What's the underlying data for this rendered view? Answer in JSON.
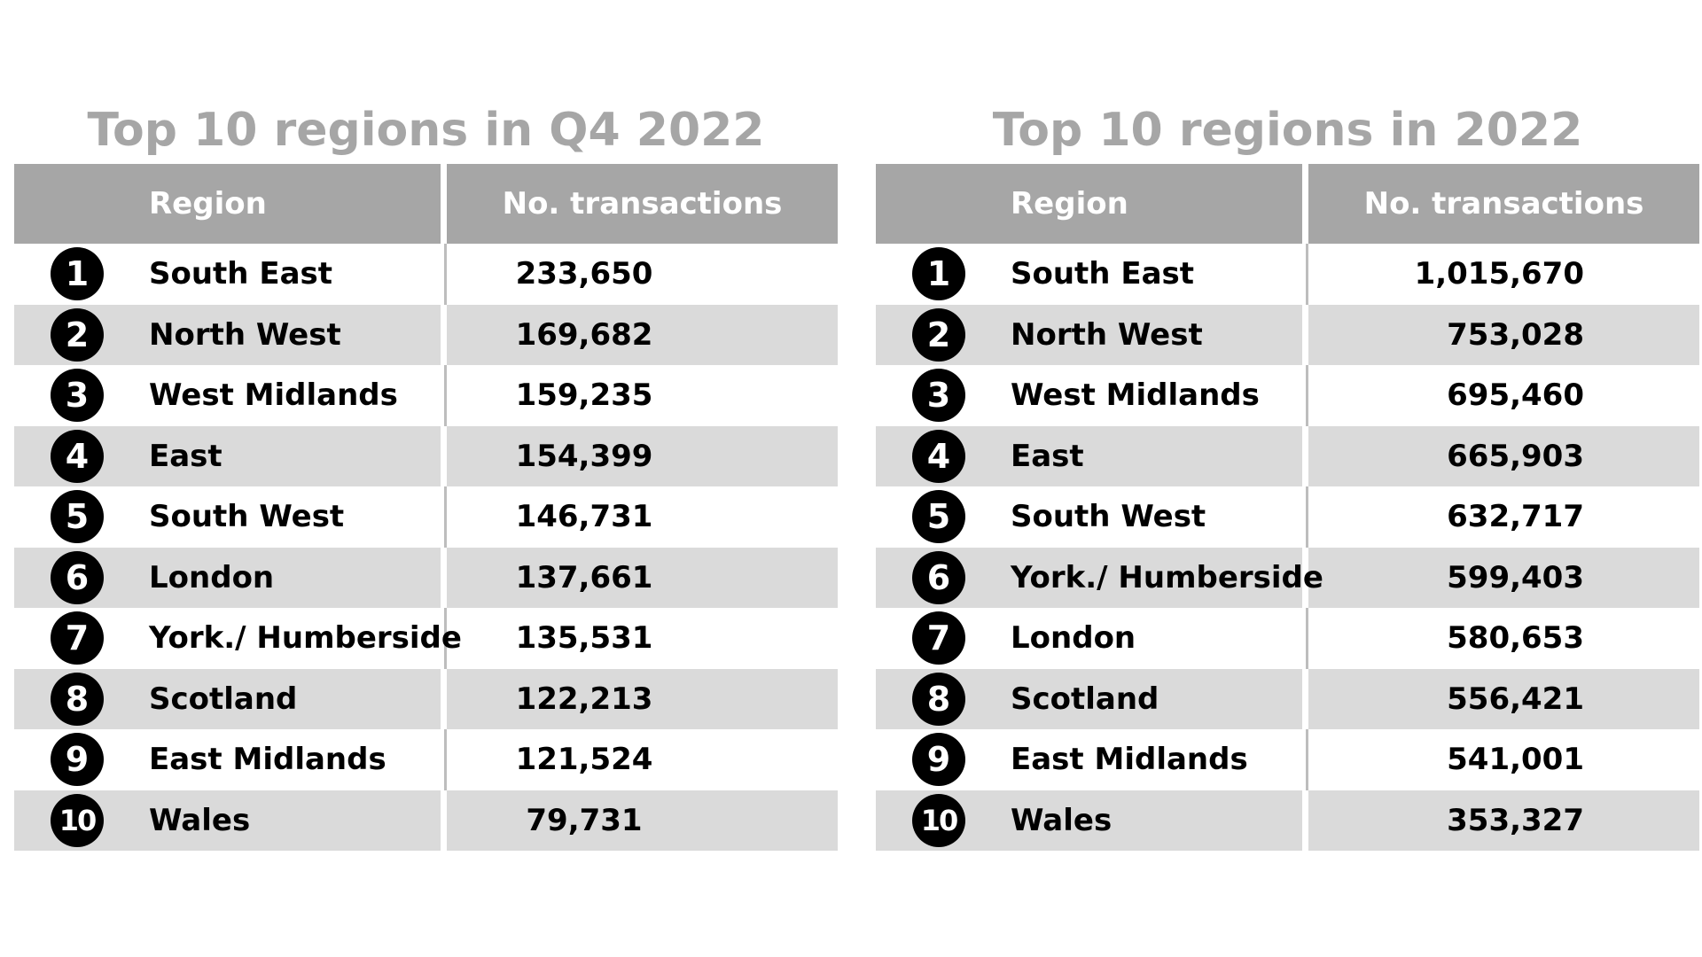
{
  "chart_data": [
    {
      "type": "table",
      "title": "Top 10 regions in Q4 2022",
      "columns": [
        "Region",
        "No. transactions"
      ],
      "rows": [
        {
          "rank": "1",
          "region": "South East",
          "transactions": "233,650"
        },
        {
          "rank": "2",
          "region": "North West",
          "transactions": "169,682"
        },
        {
          "rank": "3",
          "region": "West Midlands",
          "transactions": "159,235"
        },
        {
          "rank": "4",
          "region": "East",
          "transactions": "154,399"
        },
        {
          "rank": "5",
          "region": "South West",
          "transactions": "146,731"
        },
        {
          "rank": "6",
          "region": "London",
          "transactions": "137,661"
        },
        {
          "rank": "7",
          "region": "York./ Humberside",
          "transactions": "135,531"
        },
        {
          "rank": "8",
          "region": "Scotland",
          "transactions": "122,213"
        },
        {
          "rank": "9",
          "region": "East Midlands",
          "transactions": "121,524"
        },
        {
          "rank": "10",
          "region": "Wales",
          "transactions": "79,731"
        }
      ]
    },
    {
      "type": "table",
      "title": "Top 10 regions in 2022",
      "columns": [
        "Region",
        "No. transactions"
      ],
      "rows": [
        {
          "rank": "1",
          "region": "South East",
          "transactions": "1,015,670"
        },
        {
          "rank": "2",
          "region": "North West",
          "transactions": "753,028"
        },
        {
          "rank": "3",
          "region": "West Midlands",
          "transactions": "695,460"
        },
        {
          "rank": "4",
          "region": "East",
          "transactions": "665,903"
        },
        {
          "rank": "5",
          "region": "South West",
          "transactions": "632,717"
        },
        {
          "rank": "6",
          "region": "York./ Humberside",
          "transactions": "599,403"
        },
        {
          "rank": "7",
          "region": "London",
          "transactions": "580,653"
        },
        {
          "rank": "8",
          "region": "Scotland",
          "transactions": "556,421"
        },
        {
          "rank": "9",
          "region": "East Midlands",
          "transactions": "541,001"
        },
        {
          "rank": "10",
          "region": "Wales",
          "transactions": "353,327"
        }
      ]
    }
  ],
  "colors": {
    "header_bg": "#a6a6a6",
    "title_text": "#a6a6a6",
    "row_shade": "#dadada",
    "rank_badge": "#000000"
  }
}
